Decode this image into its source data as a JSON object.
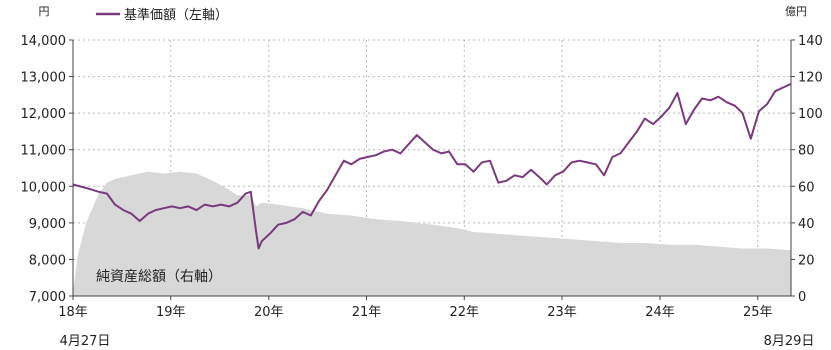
{
  "chart_data": {
    "type": "line",
    "title": "",
    "left_axis": {
      "unit": "円",
      "ylim": [
        7000,
        14000
      ],
      "ticks": [
        7000,
        8000,
        9000,
        10000,
        11000,
        12000,
        13000,
        14000
      ],
      "tick_labels": [
        "7,000",
        "8,000",
        "9,000",
        "10,000",
        "11,000",
        "12,000",
        "13,000",
        "14,000"
      ]
    },
    "right_axis": {
      "unit": "億円",
      "ylim": [
        0,
        140
      ],
      "ticks": [
        0,
        20,
        40,
        60,
        80,
        100,
        120,
        140
      ],
      "tick_labels": [
        "0",
        "20",
        "40",
        "60",
        "80",
        "100",
        "120",
        "140"
      ]
    },
    "x_axis": {
      "start": "2018-04-27",
      "end": "2025-08-29",
      "tick_dates": [
        "2018-04-27",
        "2019-04-27",
        "2020-04-27",
        "2021-04-27",
        "2022-04-27",
        "2023-04-27",
        "2024-04-27",
        "2025-04-27"
      ],
      "tick_labels": [
        "18年",
        "19年",
        "20年",
        "21年",
        "22年",
        "23年",
        "24年",
        "25年"
      ],
      "start_sub_label": "4月27日",
      "end_sub_label": "8月29日"
    },
    "grid": true,
    "series": [
      {
        "name": "基準価額（左軸）",
        "type": "line",
        "axis": "left",
        "color": "#7a3a7e",
        "points": [
          [
            "2018-04-27",
            10050
          ],
          [
            "2018-06-01",
            9980
          ],
          [
            "2018-07-01",
            9920
          ],
          [
            "2018-08-01",
            9850
          ],
          [
            "2018-09-01",
            9800
          ],
          [
            "2018-10-01",
            9500
          ],
          [
            "2018-11-01",
            9350
          ],
          [
            "2018-12-01",
            9250
          ],
          [
            "2019-01-01",
            9050
          ],
          [
            "2019-02-01",
            9250
          ],
          [
            "2019-03-01",
            9350
          ],
          [
            "2019-04-01",
            9400
          ],
          [
            "2019-05-01",
            9450
          ],
          [
            "2019-06-01",
            9400
          ],
          [
            "2019-07-01",
            9450
          ],
          [
            "2019-08-01",
            9350
          ],
          [
            "2019-09-01",
            9500
          ],
          [
            "2019-10-01",
            9450
          ],
          [
            "2019-11-01",
            9500
          ],
          [
            "2019-12-01",
            9450
          ],
          [
            "2020-01-01",
            9550
          ],
          [
            "2020-02-01",
            9800
          ],
          [
            "2020-02-20",
            9850
          ],
          [
            "2020-03-10",
            8800
          ],
          [
            "2020-03-20",
            8300
          ],
          [
            "2020-04-01",
            8500
          ],
          [
            "2020-05-01",
            8700
          ],
          [
            "2020-06-01",
            8950
          ],
          [
            "2020-07-01",
            9000
          ],
          [
            "2020-08-01",
            9100
          ],
          [
            "2020-09-01",
            9300
          ],
          [
            "2020-10-01",
            9200
          ],
          [
            "2020-11-01",
            9600
          ],
          [
            "2020-12-01",
            9900
          ],
          [
            "2021-01-01",
            10300
          ],
          [
            "2021-02-01",
            10700
          ],
          [
            "2021-03-01",
            10600
          ],
          [
            "2021-04-01",
            10750
          ],
          [
            "2021-05-01",
            10800
          ],
          [
            "2021-06-01",
            10850
          ],
          [
            "2021-07-01",
            10950
          ],
          [
            "2021-08-01",
            11000
          ],
          [
            "2021-09-01",
            10900
          ],
          [
            "2021-10-01",
            11150
          ],
          [
            "2021-11-01",
            11400
          ],
          [
            "2021-12-01",
            11200
          ],
          [
            "2022-01-01",
            11000
          ],
          [
            "2022-02-01",
            10900
          ],
          [
            "2022-03-01",
            10950
          ],
          [
            "2022-04-01",
            10600
          ],
          [
            "2022-05-01",
            10600
          ],
          [
            "2022-06-01",
            10400
          ],
          [
            "2022-07-01",
            10650
          ],
          [
            "2022-08-01",
            10700
          ],
          [
            "2022-09-01",
            10100
          ],
          [
            "2022-10-01",
            10150
          ],
          [
            "2022-11-01",
            10300
          ],
          [
            "2022-12-01",
            10250
          ],
          [
            "2023-01-01",
            10450
          ],
          [
            "2023-02-01",
            10250
          ],
          [
            "2023-03-01",
            10050
          ],
          [
            "2023-04-01",
            10300
          ],
          [
            "2023-05-01",
            10400
          ],
          [
            "2023-06-01",
            10650
          ],
          [
            "2023-07-01",
            10700
          ],
          [
            "2023-08-01",
            10650
          ],
          [
            "2023-09-01",
            10600
          ],
          [
            "2023-10-01",
            10300
          ],
          [
            "2023-11-01",
            10800
          ],
          [
            "2023-12-01",
            10900
          ],
          [
            "2024-01-01",
            11200
          ],
          [
            "2024-02-01",
            11500
          ],
          [
            "2024-03-01",
            11850
          ],
          [
            "2024-04-01",
            11700
          ],
          [
            "2024-05-01",
            11900
          ],
          [
            "2024-06-01",
            12150
          ],
          [
            "2024-07-01",
            12550
          ],
          [
            "2024-08-01",
            11700
          ],
          [
            "2024-09-01",
            12100
          ],
          [
            "2024-10-01",
            12400
          ],
          [
            "2024-11-01",
            12350
          ],
          [
            "2024-12-01",
            12450
          ],
          [
            "2025-01-01",
            12300
          ],
          [
            "2025-02-01",
            12200
          ],
          [
            "2025-03-01",
            12000
          ],
          [
            "2025-04-01",
            11300
          ],
          [
            "2025-05-01",
            12050
          ],
          [
            "2025-06-01",
            12250
          ],
          [
            "2025-07-01",
            12600
          ],
          [
            "2025-08-29",
            12800
          ]
        ]
      },
      {
        "name": "純資産総額（右軸）",
        "type": "area",
        "axis": "right",
        "color": "#d8d8d8",
        "points": [
          [
            "2018-04-27",
            2
          ],
          [
            "2018-05-15",
            22
          ],
          [
            "2018-06-15",
            40
          ],
          [
            "2018-08-01",
            56
          ],
          [
            "2018-09-01",
            62
          ],
          [
            "2018-10-01",
            64
          ],
          [
            "2018-12-01",
            66
          ],
          [
            "2019-02-01",
            68
          ],
          [
            "2019-04-01",
            67
          ],
          [
            "2019-06-01",
            68
          ],
          [
            "2019-08-01",
            67
          ],
          [
            "2019-10-01",
            63
          ],
          [
            "2019-12-01",
            58
          ],
          [
            "2020-01-01",
            55
          ],
          [
            "2020-02-20",
            55
          ],
          [
            "2020-03-10",
            49
          ],
          [
            "2020-04-01",
            51
          ],
          [
            "2020-06-01",
            50
          ],
          [
            "2020-09-01",
            48
          ],
          [
            "2020-12-01",
            45
          ],
          [
            "2021-03-01",
            44
          ],
          [
            "2021-06-01",
            42
          ],
          [
            "2021-09-01",
            41
          ],
          [
            "2022-01-01",
            39
          ],
          [
            "2022-04-01",
            37
          ],
          [
            "2022-06-01",
            35
          ],
          [
            "2022-09-01",
            34
          ],
          [
            "2022-12-01",
            33
          ],
          [
            "2023-03-01",
            32
          ],
          [
            "2023-06-01",
            31
          ],
          [
            "2023-09-01",
            30
          ],
          [
            "2023-12-01",
            29
          ],
          [
            "2024-03-01",
            29
          ],
          [
            "2024-06-01",
            28
          ],
          [
            "2024-09-01",
            28
          ],
          [
            "2024-12-01",
            27
          ],
          [
            "2025-03-01",
            26
          ],
          [
            "2025-06-01",
            26
          ],
          [
            "2025-08-29",
            25
          ]
        ]
      }
    ],
    "legend": {
      "position": "top-left",
      "entries": [
        "基準価額（左軸）"
      ]
    },
    "annotations": [
      {
        "text": "純資産総額（右軸）",
        "date": "2018-12-01",
        "value_right": 13
      }
    ]
  }
}
